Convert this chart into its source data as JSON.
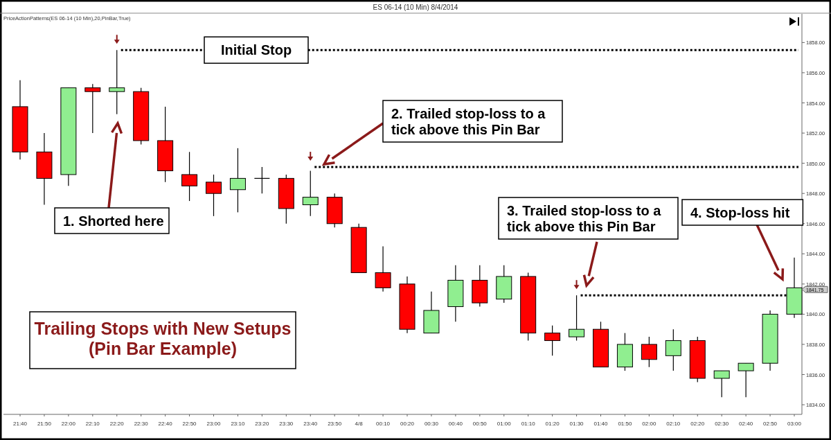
{
  "chart_data": {
    "type": "candlestick",
    "title": "ES 06-14 (10 Min)  8/4/2014",
    "subtitle": "PriceActionPatterns(ES 06-14 (10 Min),20,PinBar,True)",
    "categories": [
      "21:40",
      "21:50",
      "22:00",
      "22:10",
      "22:20",
      "22:30",
      "22:40",
      "22:50",
      "23:00",
      "23:10",
      "23:20",
      "23:30",
      "23:40",
      "23:50",
      "4/8",
      "00:10",
      "00:20",
      "00:30",
      "00:40",
      "00:50",
      "01:00",
      "01:10",
      "01:20",
      "01:30",
      "01:40",
      "01:50",
      "02:00",
      "02:10",
      "02:20",
      "02:30",
      "02:40",
      "02:50",
      "03:00"
    ],
    "ohlc": [
      [
        1853.75,
        1855.5,
        1850.25,
        1850.75
      ],
      [
        1850.75,
        1852.0,
        1847.25,
        1849.0
      ],
      [
        1849.25,
        1855.0,
        1848.5,
        1855.0
      ],
      [
        1855.0,
        1855.25,
        1852.0,
        1854.75
      ],
      [
        1854.75,
        1857.5,
        1853.25,
        1855.0
      ],
      [
        1854.75,
        1855.0,
        1851.25,
        1851.5
      ],
      [
        1851.5,
        1853.75,
        1848.75,
        1849.5
      ],
      [
        1849.25,
        1850.75,
        1847.5,
        1848.5
      ],
      [
        1848.75,
        1849.25,
        1846.5,
        1848.0
      ],
      [
        1848.25,
        1851.0,
        1846.75,
        1849.0
      ],
      [
        1849.0,
        1849.75,
        1848.0,
        1849.0
      ],
      [
        1849.0,
        1849.25,
        1846.0,
        1847.0
      ],
      [
        1847.25,
        1849.5,
        1846.5,
        1847.75
      ],
      [
        1847.75,
        1848.0,
        1845.75,
        1846.0
      ],
      [
        1845.75,
        1846.0,
        1842.75,
        1842.75
      ],
      [
        1842.75,
        1844.5,
        1841.5,
        1841.75
      ],
      [
        1842.0,
        1842.5,
        1838.75,
        1839.0
      ],
      [
        1838.75,
        1841.5,
        1838.75,
        1840.25
      ],
      [
        1840.5,
        1843.25,
        1839.5,
        1842.25
      ],
      [
        1842.25,
        1843.25,
        1840.5,
        1840.75
      ],
      [
        1841.0,
        1843.25,
        1840.75,
        1842.5
      ],
      [
        1842.5,
        1842.75,
        1838.25,
        1838.75
      ],
      [
        1838.75,
        1839.25,
        1837.25,
        1838.25
      ],
      [
        1838.5,
        1841.25,
        1838.25,
        1839.0
      ],
      [
        1839.0,
        1839.5,
        1836.5,
        1836.5
      ],
      [
        1836.5,
        1838.75,
        1836.25,
        1838.0
      ],
      [
        1838.0,
        1838.5,
        1836.5,
        1837.0
      ],
      [
        1837.25,
        1839.0,
        1836.25,
        1838.25
      ],
      [
        1838.25,
        1838.5,
        1835.5,
        1835.75
      ],
      [
        1835.75,
        1836.25,
        1834.5,
        1836.25
      ],
      [
        1836.25,
        1836.75,
        1834.5,
        1836.75
      ],
      [
        1836.75,
        1840.25,
        1836.25,
        1840.0
      ],
      [
        1840.0,
        1843.75,
        1839.75,
        1841.75
      ]
    ],
    "colors": [
      "#ff0000",
      "#ff0000",
      "#90ee90",
      "#ff0000",
      "#90ee90",
      "#ff0000",
      "#ff0000",
      "#ff0000",
      "#ff0000",
      "#90ee90",
      "#000000",
      "#ff0000",
      "#90ee90",
      "#ff0000",
      "#ff0000",
      "#ff0000",
      "#ff0000",
      "#90ee90",
      "#90ee90",
      "#ff0000",
      "#90ee90",
      "#ff0000",
      "#ff0000",
      "#90ee90",
      "#ff0000",
      "#90ee90",
      "#ff0000",
      "#90ee90",
      "#ff0000",
      "#90ee90",
      "#90ee90",
      "#90ee90",
      "#90ee90"
    ],
    "ylim": [
      1833.5,
      1859.9
    ],
    "yticks": [
      {
        "value": 1834,
        "label": "1834.00"
      },
      {
        "value": 1836,
        "label": "1836.00"
      },
      {
        "value": 1838,
        "label": "1838.00"
      },
      {
        "value": 1840,
        "label": "1840.00"
      },
      {
        "value": 1842,
        "label": "1842.00"
      },
      {
        "value": 1844,
        "label": "1844.00"
      },
      {
        "value": 1846,
        "label": "1846.00"
      },
      {
        "value": 1848,
        "label": "1848.00"
      },
      {
        "value": 1850,
        "label": "1850.00"
      },
      {
        "value": 1852,
        "label": "1852.00"
      },
      {
        "value": 1854,
        "label": "1854.00"
      },
      {
        "value": 1856,
        "label": "1856.00"
      },
      {
        "value": 1858,
        "label": "1858.00"
      }
    ],
    "grid": false,
    "ref_lines": [
      {
        "axis": "y",
        "value": 1857.5,
        "label": "Initial Stop",
        "color": "#000000",
        "line_style": "dotted"
      },
      {
        "axis": "y",
        "value": 1849.75,
        "color": "#000000",
        "line_style": "dotted"
      },
      {
        "axis": "y",
        "value": 1841.25,
        "color": "#000000",
        "line_style": "dotted"
      }
    ],
    "annotations": [
      "1. Shorted here",
      "2. Trailed stop-loss to a\ntick above this Pin Bar",
      "3. Trailed stop-loss to a\ntick above this Pin Bar",
      "4. Stop-loss hit",
      "Trailing Stops with New Setups\n(Pin Bar Example)",
      "1841.75"
    ]
  }
}
